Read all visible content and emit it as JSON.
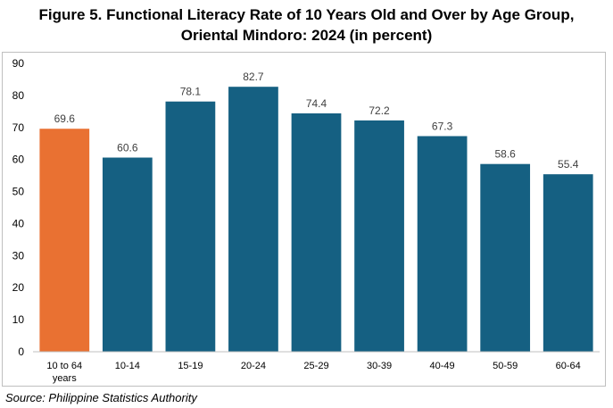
{
  "chart_data": {
    "type": "bar",
    "title_lines": [
      "Figure 5. Functional Literacy Rate of 10 Years Old and Over by Age Group,",
      "Oriental Mindoro: 2024 (in percent)"
    ],
    "categories": [
      [
        "10 to 64",
        "years"
      ],
      [
        "10-14"
      ],
      [
        "15-19"
      ],
      [
        "20-24"
      ],
      [
        "25-29"
      ],
      [
        "30-39"
      ],
      [
        "40-49"
      ],
      [
        "50-59"
      ],
      [
        "60-64"
      ]
    ],
    "values": [
      69.6,
      60.6,
      78.1,
      82.7,
      74.4,
      72.2,
      67.3,
      58.6,
      55.4
    ],
    "data_labels": [
      "69.6",
      "60.6",
      "78.1",
      "82.7",
      "74.4",
      "72.2",
      "67.3",
      "58.6",
      "55.4"
    ],
    "ylim": [
      0,
      90
    ],
    "yticks": [
      0,
      10,
      20,
      30,
      40,
      50,
      60,
      70,
      80,
      90
    ],
    "xlabel": "",
    "ylabel": "",
    "grid": false,
    "legend": "none",
    "colors": {
      "highlight": "#E97132",
      "bars": "#156082",
      "axis": "#bfbfbf"
    },
    "highlight_index": 0
  },
  "source": "Source: Philippine Statistics Authority"
}
